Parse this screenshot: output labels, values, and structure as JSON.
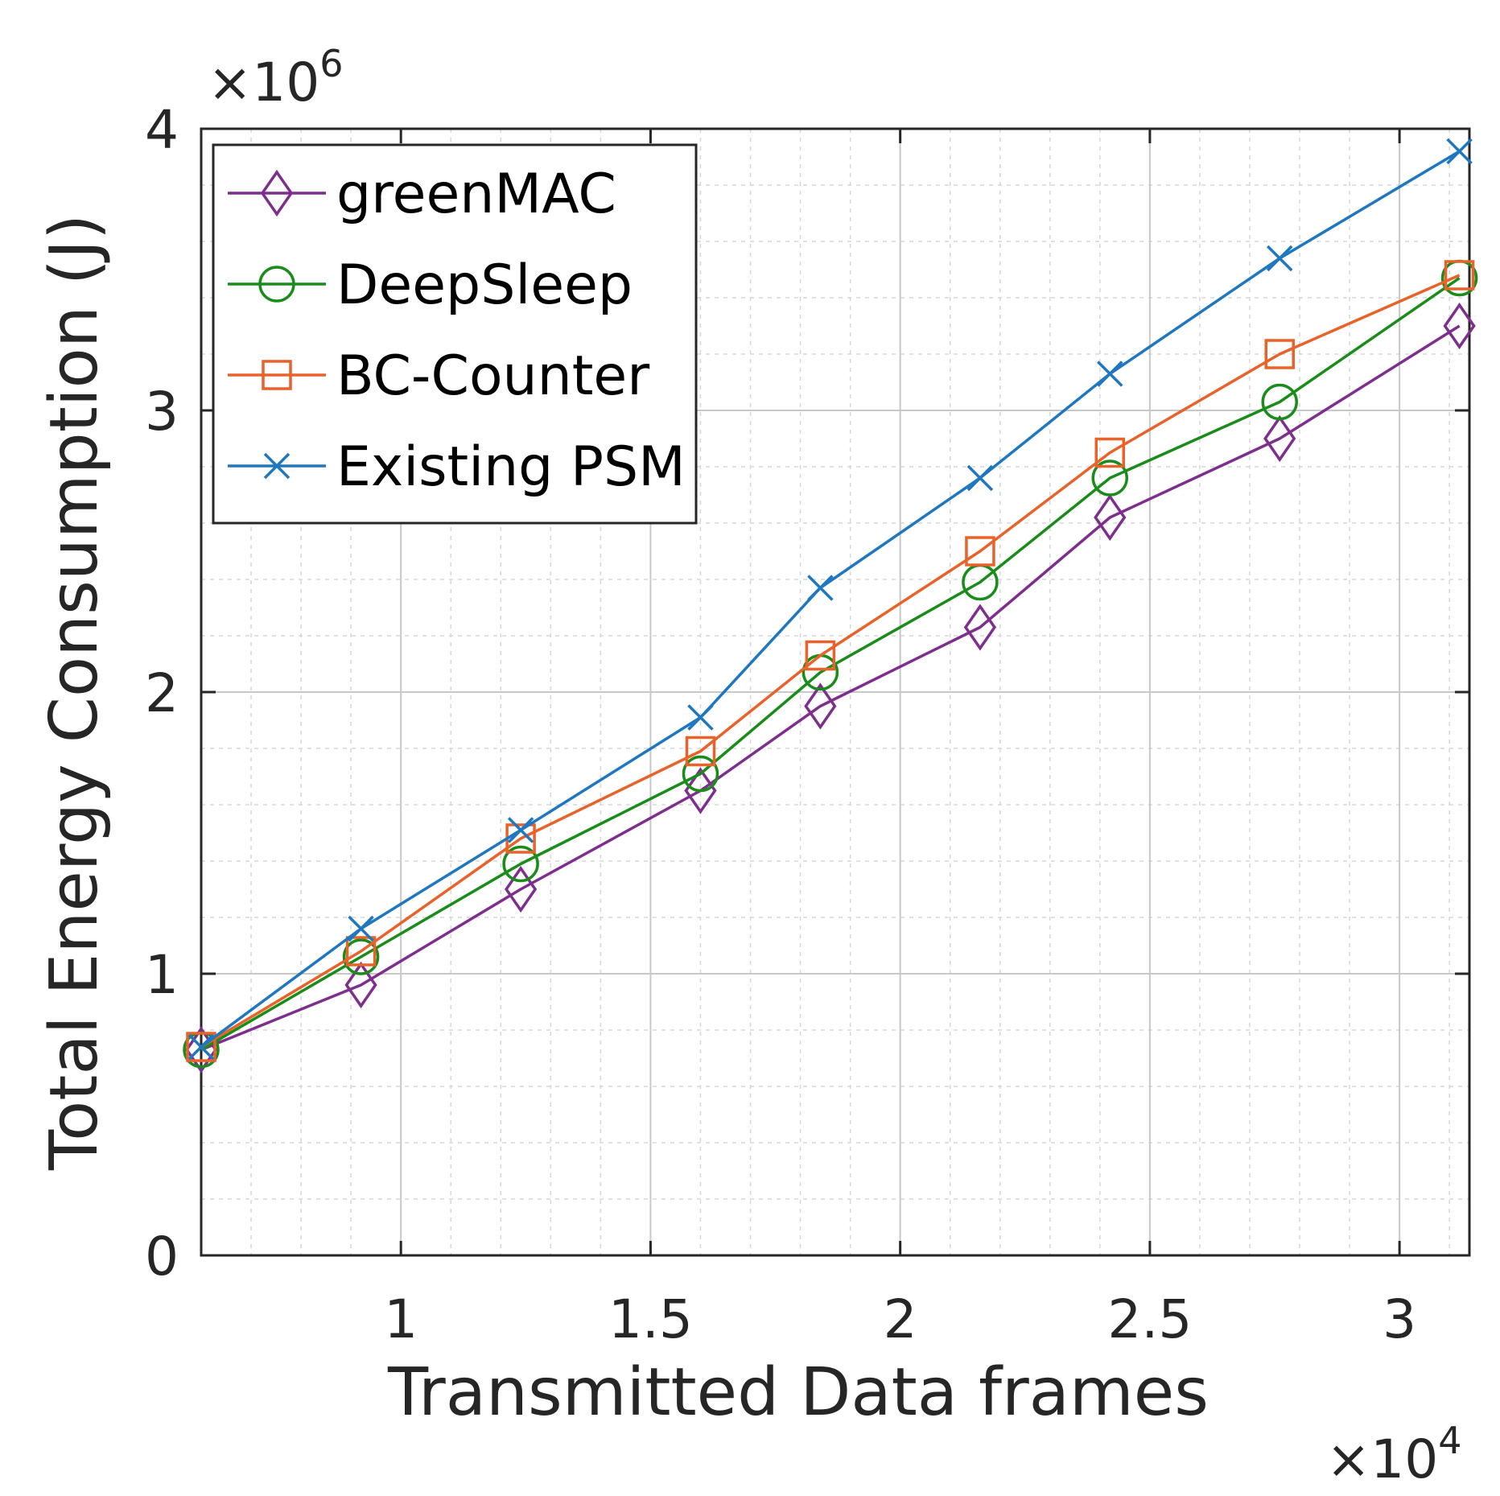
{
  "chart_data": {
    "type": "line",
    "title": "",
    "xlabel": "Transmitted Data frames",
    "ylabel": "Total Energy Consumption (J)",
    "x_multiplier": "×10",
    "x_multiplier_exponent": "4",
    "y_multiplier": "×10",
    "y_multiplier_exponent": "6",
    "xlim": [
      0.6,
      3.14
    ],
    "ylim": [
      0,
      4
    ],
    "xticks": [
      1,
      1.5,
      2,
      2.5,
      3
    ],
    "xtick_labels": [
      "1",
      "1.5",
      "2",
      "2.5",
      "3"
    ],
    "yticks": [
      0,
      1,
      2,
      3,
      4
    ],
    "ytick_labels": [
      "0",
      "1",
      "2",
      "3",
      "4"
    ],
    "grid": true,
    "minor_grid": true,
    "legend_position": "top-left",
    "x": [
      0.6,
      0.92,
      1.24,
      1.6,
      1.84,
      2.16,
      2.42,
      2.76,
      3.12
    ],
    "series": [
      {
        "name": "greenMAC",
        "marker": "diamond",
        "color": "#7E2F8E",
        "values": [
          0.73,
          0.96,
          1.3,
          1.65,
          1.95,
          2.23,
          2.62,
          2.9,
          3.3
        ]
      },
      {
        "name": "DeepSleep",
        "marker": "circle",
        "color": "#1A8C1A",
        "values": [
          0.73,
          1.06,
          1.39,
          1.71,
          2.07,
          2.39,
          2.76,
          3.03,
          3.47
        ]
      },
      {
        "name": "BC-Counter",
        "marker": "square",
        "color": "#E8622A",
        "values": [
          0.74,
          1.08,
          1.48,
          1.79,
          2.13,
          2.5,
          2.85,
          3.2,
          3.48
        ]
      },
      {
        "name": "Existing PSM",
        "marker": "x",
        "color": "#1F77C0",
        "values": [
          0.74,
          1.16,
          1.51,
          1.91,
          2.37,
          2.76,
          3.13,
          3.54,
          3.92
        ]
      }
    ]
  }
}
